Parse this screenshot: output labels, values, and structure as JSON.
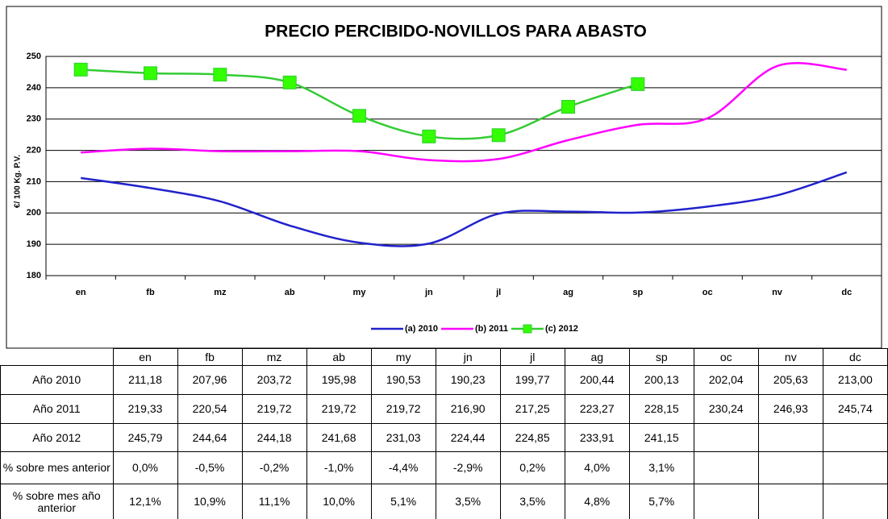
{
  "chart_data": {
    "type": "line",
    "title": "PRECIO PERCIBIDO-NOVILLOS PARA ABASTO",
    "y_label": "€/ 100 Kg. P.V.",
    "categories": [
      "en",
      "fb",
      "mz",
      "ab",
      "my",
      "jn",
      "jl",
      "ag",
      "sp",
      "oc",
      "nv",
      "dc"
    ],
    "series": [
      {
        "name": "(a) 2010",
        "color": "#2222cc",
        "values": [
          211.18,
          207.96,
          203.72,
          195.98,
          190.53,
          190.23,
          199.77,
          200.44,
          200.13,
          202.04,
          205.63,
          213.0
        ]
      },
      {
        "name": "(b) 2011",
        "color": "#ff00ff",
        "values": [
          219.33,
          220.54,
          219.72,
          219.72,
          219.72,
          216.9,
          217.25,
          223.27,
          228.15,
          230.24,
          246.93,
          245.74
        ]
      },
      {
        "name": "(c) 2012",
        "color": "#33cc33",
        "marker": "square",
        "marker_color": "#33ff00",
        "values": [
          245.79,
          244.64,
          244.18,
          241.68,
          231.03,
          224.44,
          224.85,
          233.91,
          241.15,
          null,
          null,
          null
        ]
      }
    ],
    "ylim": [
      180,
      250
    ],
    "yticks": [
      180,
      190,
      200,
      210,
      220,
      230,
      240,
      250
    ],
    "grid": true,
    "legend": "bottom"
  },
  "table": {
    "rows": [
      {
        "label": "Año 2010",
        "cells": [
          "211,18",
          "207,96",
          "203,72",
          "195,98",
          "190,53",
          "190,23",
          "199,77",
          "200,44",
          "200,13",
          "202,04",
          "205,63",
          "213,00"
        ]
      },
      {
        "label": "Año 2011",
        "cells": [
          "219,33",
          "220,54",
          "219,72",
          "219,72",
          "219,72",
          "216,90",
          "217,25",
          "223,27",
          "228,15",
          "230,24",
          "246,93",
          "245,74"
        ]
      },
      {
        "label": "Año 2012",
        "cells": [
          "245,79",
          "244,64",
          "244,18",
          "241,68",
          "231,03",
          "224,44",
          "224,85",
          "233,91",
          "241,15"
        ]
      },
      {
        "label": "% sobre mes anterior",
        "cells": [
          "0,0%",
          "-0,5%",
          "-0,2%",
          "-1,0%",
          "-4,4%",
          "-2,9%",
          "0,2%",
          "4,0%",
          "3,1%"
        ]
      },
      {
        "label": "% sobre mes año anterior",
        "cells": [
          "12,1%",
          "10,9%",
          "11,1%",
          "10,0%",
          "5,1%",
          "3,5%",
          "3,5%",
          "4,8%",
          "5,7%"
        ]
      }
    ]
  }
}
